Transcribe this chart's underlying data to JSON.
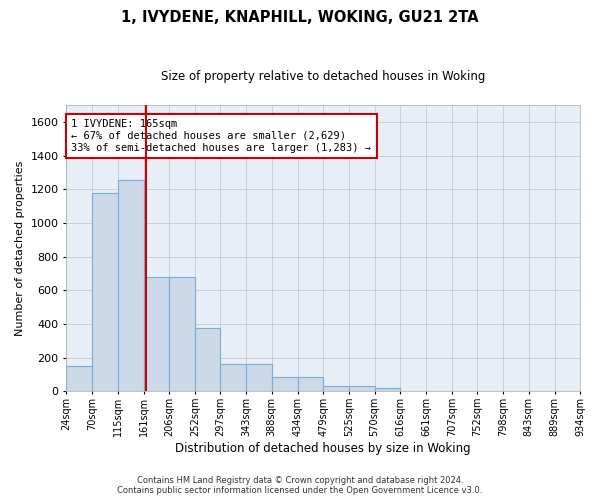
{
  "title": "1, IVYDENE, KNAPHILL, WOKING, GU21 2TA",
  "subtitle": "Size of property relative to detached houses in Woking",
  "xlabel": "Distribution of detached houses by size in Woking",
  "ylabel": "Number of detached properties",
  "footer_line1": "Contains HM Land Registry data © Crown copyright and database right 2024.",
  "footer_line2": "Contains public sector information licensed under the Open Government Licence v3.0.",
  "bar_color": "#ccd9e8",
  "bar_edge_color": "#7aadd4",
  "grid_color": "#b8c4d4",
  "background_color": "#e8eef6",
  "annotation_text": "1 IVYDENE: 165sqm\n← 67% of detached houses are smaller (2,629)\n33% of semi-detached houses are larger (1,283) →",
  "annotation_box_color": "#ffffff",
  "annotation_box_edge": "#cc0000",
  "vline_color": "#cc0000",
  "vline_x": 165,
  "ylim": [
    0,
    1700
  ],
  "bin_edges": [
    24,
    70,
    115,
    161,
    206,
    252,
    297,
    343,
    388,
    434,
    479,
    525,
    570,
    616,
    661,
    707,
    752,
    798,
    843,
    889,
    934
  ],
  "bar_heights": [
    150,
    1175,
    1255,
    680,
    680,
    375,
    165,
    165,
    85,
    85,
    30,
    30,
    20,
    0,
    0,
    0,
    0,
    0,
    0,
    0
  ],
  "tick_labels": [
    "24sqm",
    "70sqm",
    "115sqm",
    "161sqm",
    "206sqm",
    "252sqm",
    "297sqm",
    "343sqm",
    "388sqm",
    "434sqm",
    "479sqm",
    "525sqm",
    "570sqm",
    "616sqm",
    "661sqm",
    "707sqm",
    "752sqm",
    "798sqm",
    "843sqm",
    "889sqm",
    "934sqm"
  ],
  "figwidth": 6.0,
  "figheight": 5.0,
  "dpi": 100
}
